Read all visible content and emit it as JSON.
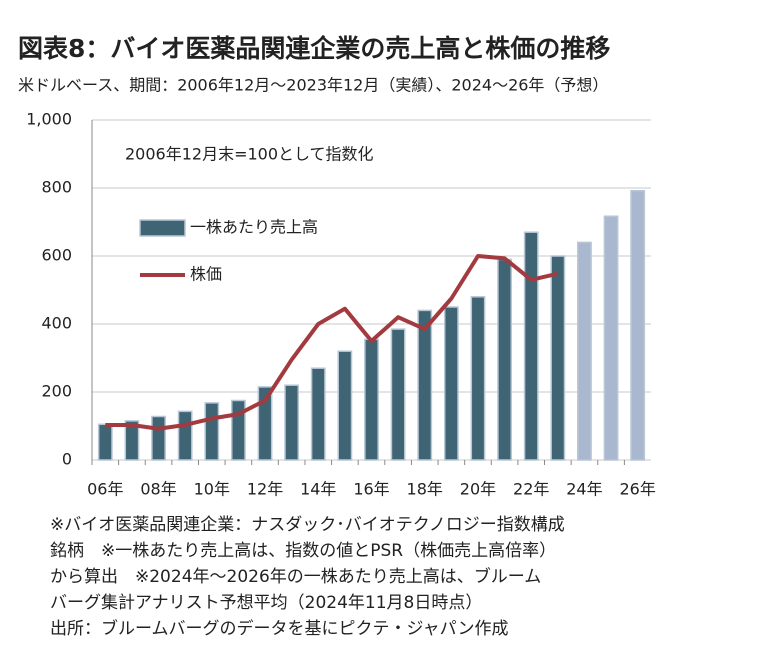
{
  "chart_data": {
    "type": "bar_line",
    "title": "図表8：バイオ医薬品関連企業の売上高と株価の推移",
    "subtitle": "米ドルベース、期間：2006年12月～2023年12月（実績）、2024～26年（予想）",
    "annotation": "2006年12月末=100として指数化",
    "categories": [
      "06年",
      null,
      "08年",
      null,
      "10年",
      null,
      "12年",
      null,
      "14年",
      null,
      "16年",
      null,
      "18年",
      null,
      "20年",
      null,
      "22年",
      null,
      "24年",
      null,
      "26年"
    ],
    "series": [
      {
        "name": "一株あたり売上高",
        "type": "bar",
        "color": "#3f6474",
        "colors": [
          "#3f6474",
          "#3f6474",
          "#3f6474",
          "#3f6474",
          "#3f6474",
          "#3f6474",
          "#3f6474",
          "#3f6474",
          "#3f6474",
          "#3f6474",
          "#3f6474",
          "#3f6474",
          "#3f6474",
          "#3f6474",
          "#3f6474",
          "#3f6474",
          "#3f6474",
          "#3f6474",
          "#a9b8cf",
          "#a9b8cf",
          "#a9b8cf"
        ],
        "values": [
          105,
          115,
          128,
          143,
          168,
          175,
          215,
          220,
          270,
          320,
          355,
          385,
          440,
          450,
          480,
          590,
          670,
          600,
          640,
          717,
          792
        ]
      },
      {
        "name": "株価",
        "type": "line",
        "color": "#a33a3f",
        "values": [
          103,
          103,
          92,
          103,
          122,
          135,
          175,
          295,
          400,
          445,
          350,
          420,
          385,
          475,
          600,
          593,
          530,
          548,
          null,
          null,
          null
        ]
      }
    ],
    "ylim": [
      0,
      1000
    ],
    "yticks": [
      0,
      200,
      400,
      600,
      800,
      {
        "value": 1000,
        "label": "1,000"
      }
    ],
    "grid": true,
    "notes": [
      "※バイオ医薬品関連企業：ナスダック･バイオテクノロジー指数構成",
      "銘柄　※一株あたり売上高は、指数の値とPSR（株価売上高倍率）",
      "から算出　※2024年～2026年の一株あたり売上高は、ブルーム",
      "バーグ集計アナリスト予想平均（2024年11月8日時点）",
      "出所：ブルームバーグのデータを基にピクテ・ジャパン作成"
    ]
  }
}
